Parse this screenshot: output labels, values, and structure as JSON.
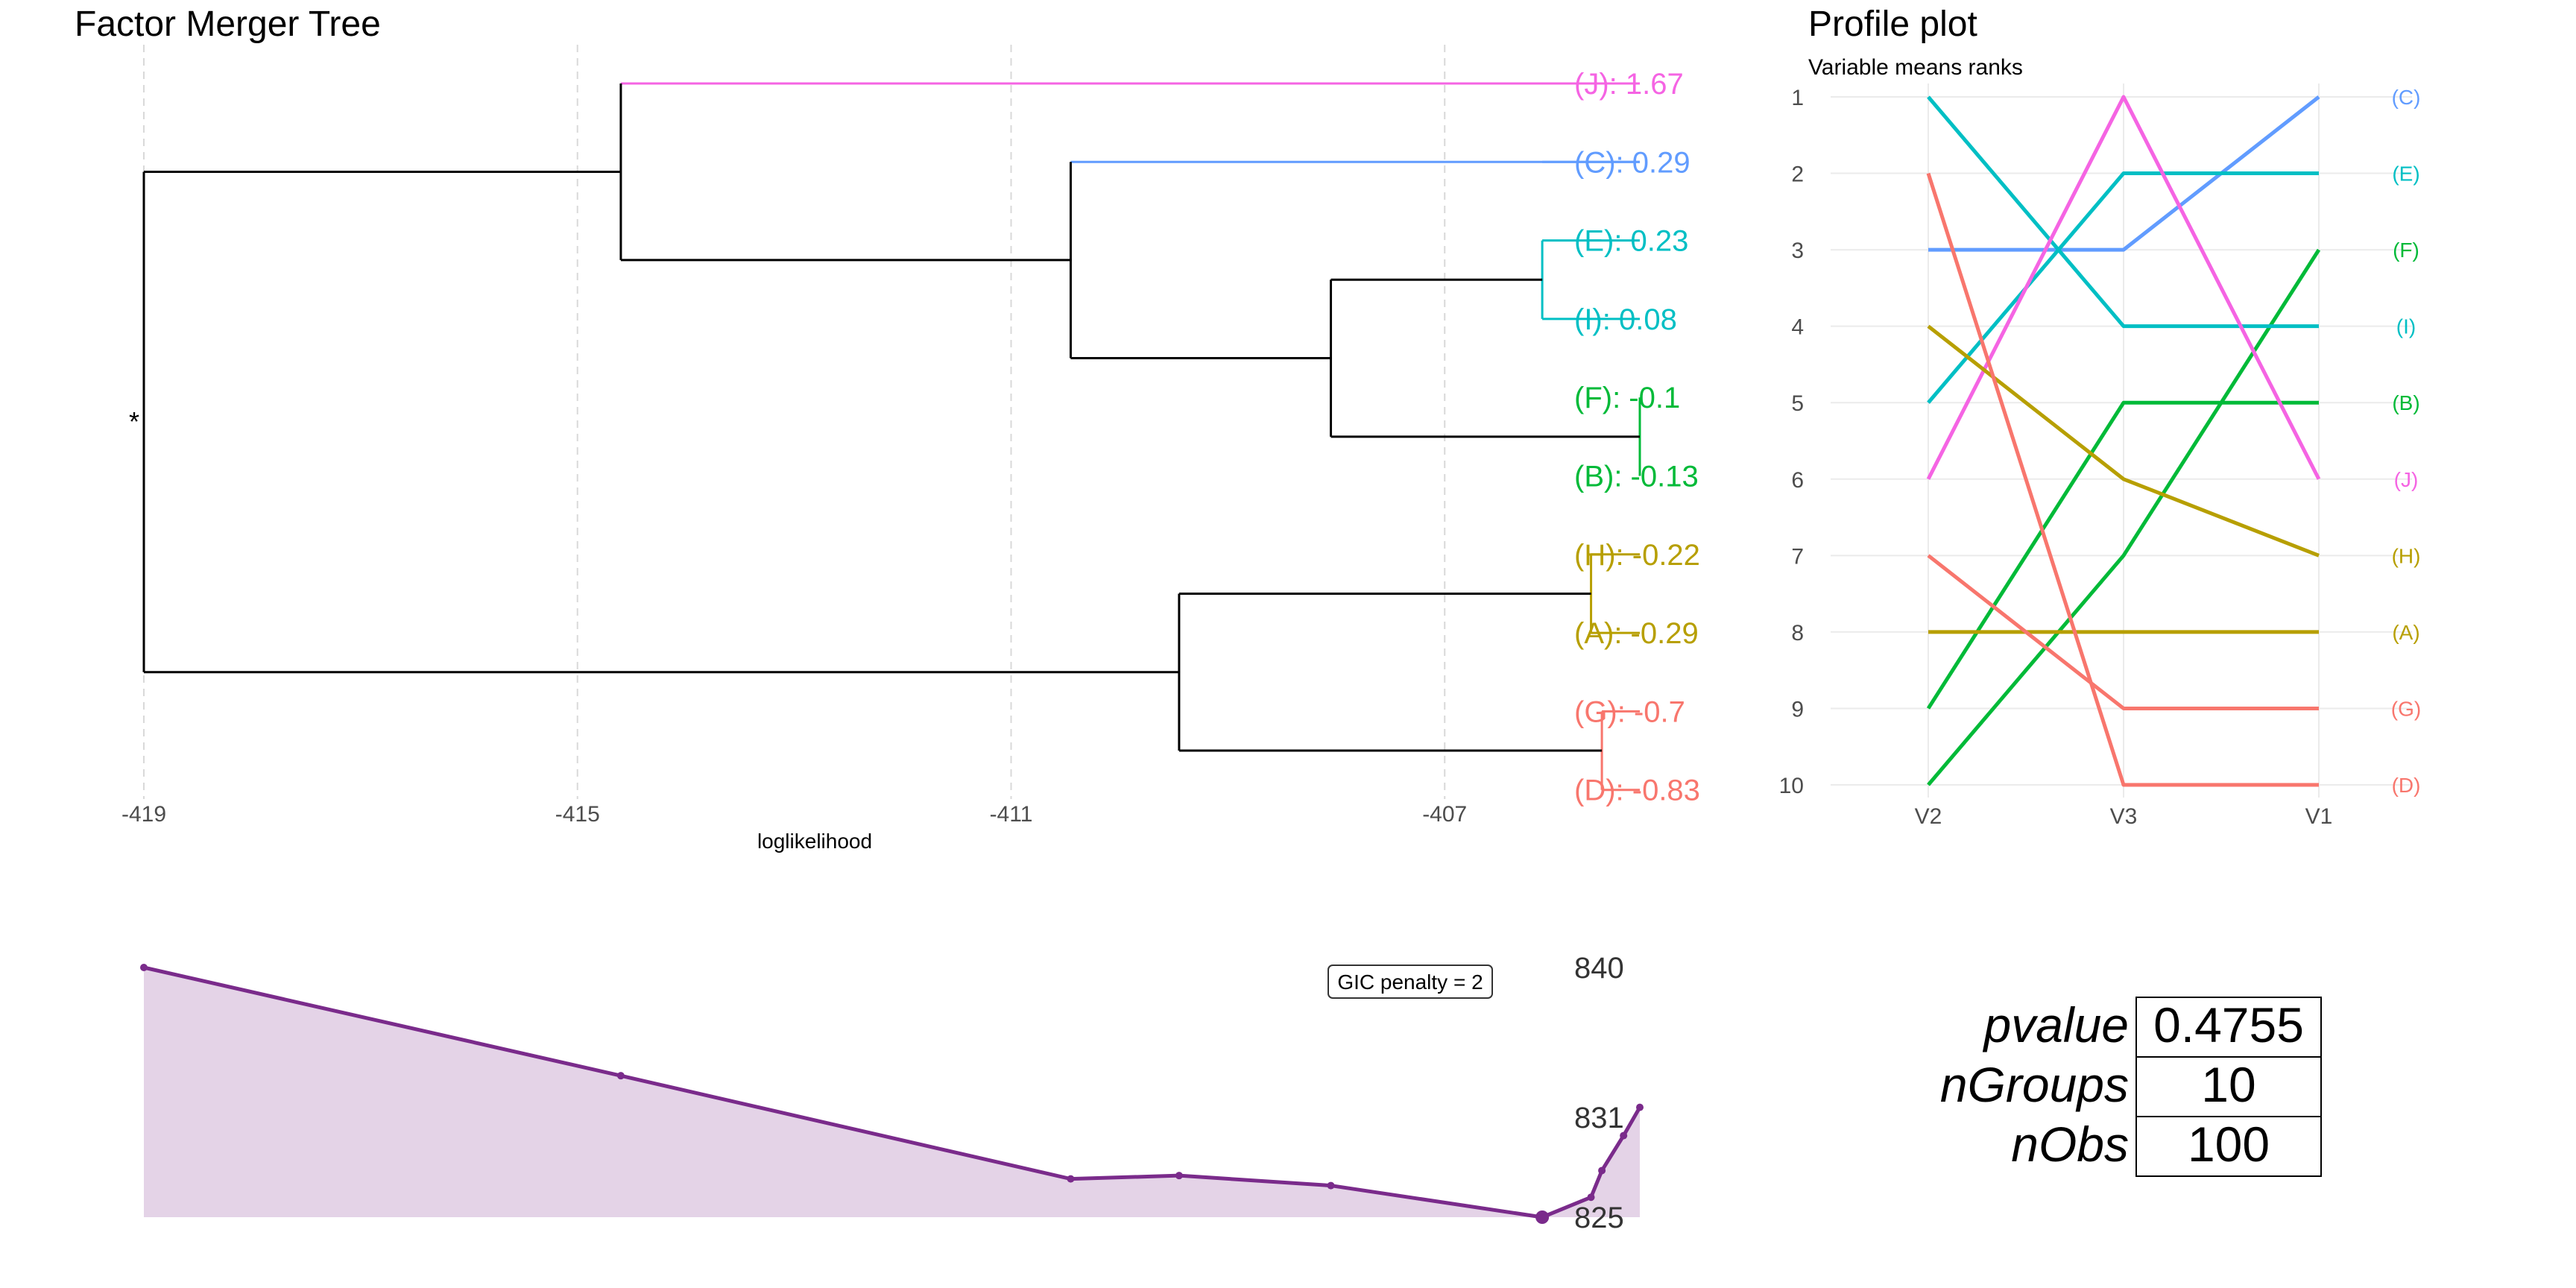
{
  "colors": {
    "J": "#f564e3",
    "C": "#619cff",
    "E": "#00bfc4",
    "I": "#00bfc4",
    "F": "#00ba38",
    "B": "#00ba38",
    "H": "#b79f00",
    "A": "#b79f00",
    "G": "#f8766d",
    "D": "#f8766d",
    "tree": "#000000",
    "gic_line": "#7a2b8b",
    "gic_fill": "#e4d3e7"
  },
  "chart_data": [
    {
      "type": "dendrogram",
      "title": "Factor Merger Tree",
      "xlabel": "loglikelihood",
      "xlim": [
        -419,
        -405.2
      ],
      "x_ticks": [
        -419,
        -415,
        -411,
        -407
      ],
      "root_marker": "*",
      "leaves": [
        {
          "group": "J",
          "label": "(J): 1.67"
        },
        {
          "group": "C",
          "label": "(C): 0.29"
        },
        {
          "group": "E",
          "label": "(E): 0.23"
        },
        {
          "group": "I",
          "label": "(I): 0.08"
        },
        {
          "group": "F",
          "label": "(F): -0.1"
        },
        {
          "group": "B",
          "label": "(B): -0.13"
        },
        {
          "group": "H",
          "label": "(H): -0.22"
        },
        {
          "group": "A",
          "label": "(A): -0.29"
        },
        {
          "group": "G",
          "label": "(G): -0.7"
        },
        {
          "group": "D",
          "label": "(D): -0.83"
        }
      ],
      "merges": [
        {
          "children": [
            6,
            7
          ],
          "height": -405.65,
          "color": "H"
        },
        {
          "children": [
            4,
            5
          ],
          "height": -405.2,
          "color": "F"
        },
        {
          "children": [
            8,
            9
          ],
          "height": -405.55,
          "color": "G"
        },
        {
          "children": [
            2,
            3
          ],
          "height": -406.1,
          "color": "E"
        },
        {
          "children": [
            "F-B",
            "E-I"
          ],
          "height": -408.05
        },
        {
          "children": [
            1,
            "E-I-F-B"
          ],
          "height": -410.45
        },
        {
          "children": [
            "H-A",
            "G-D"
          ],
          "height": -409.45
        },
        {
          "children": [
            0,
            "C-E-I-F-B"
          ],
          "height": -414.6
        },
        {
          "children": [
            "J-C-E-I-F-B",
            "H-A-G-D"
          ],
          "height": -419
        }
      ]
    },
    {
      "type": "line",
      "title": "Profile plot",
      "subtitle": "Variable means ranks",
      "categories": [
        "V2",
        "V3",
        "V1"
      ],
      "ylim": [
        1,
        10
      ],
      "y_reversed": true,
      "y_ticks": [
        1,
        2,
        3,
        4,
        5,
        6,
        7,
        8,
        9,
        10
      ],
      "series": [
        {
          "name": "(C)",
          "group": "C",
          "values": [
            3,
            3,
            1
          ]
        },
        {
          "name": "(E)",
          "group": "E",
          "values": [
            5,
            2,
            2
          ]
        },
        {
          "name": "(F)",
          "group": "F",
          "values": [
            10,
            7,
            3
          ]
        },
        {
          "name": "(I)",
          "group": "I",
          "values": [
            1,
            4,
            4
          ]
        },
        {
          "name": "(B)",
          "group": "B",
          "values": [
            9,
            5,
            5
          ]
        },
        {
          "name": "(J)",
          "group": "J",
          "values": [
            6,
            1,
            6
          ]
        },
        {
          "name": "(H)",
          "group": "H",
          "values": [
            4,
            6,
            7
          ]
        },
        {
          "name": "(A)",
          "group": "A",
          "values": [
            8,
            8,
            8
          ]
        },
        {
          "name": "(G)",
          "group": "G",
          "values": [
            7,
            9,
            9
          ]
        },
        {
          "name": "(D)",
          "group": "D",
          "values": [
            2,
            10,
            10
          ]
        }
      ]
    },
    {
      "type": "area",
      "badge": "GIC penalty = 2",
      "x": [
        -419,
        -414.6,
        -410.45,
        -409.45,
        -408.05,
        -406.1,
        -405.65,
        -405.55,
        -405.35,
        -405.2
      ],
      "values": [
        840,
        833.5,
        827.3,
        827.5,
        826.9,
        825.0,
        826.2,
        827.8,
        829.9,
        831.6
      ],
      "highlight_index": 5,
      "ylim": [
        825,
        840
      ],
      "y_ticks": [
        840,
        831,
        825
      ]
    },
    {
      "type": "table",
      "rows": [
        {
          "name": "pvalue",
          "value": "0.4755"
        },
        {
          "name": "nGroups",
          "value": "10"
        },
        {
          "name": "nObs",
          "value": "100"
        }
      ]
    }
  ]
}
